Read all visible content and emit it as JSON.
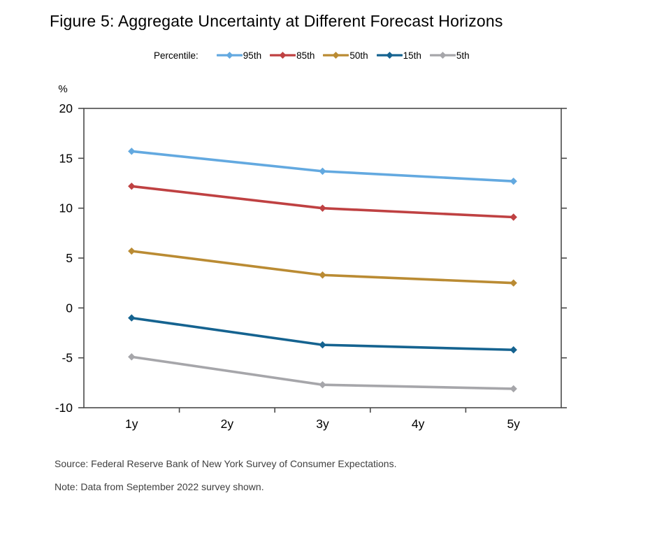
{
  "title": "Figure 5: Aggregate Uncertainty at Different Forecast Horizons",
  "legend": {
    "label": "Percentile:"
  },
  "chart_data": {
    "type": "line",
    "title": "Figure 5: Aggregate Uncertainty at Different Forecast Horizons",
    "unit_label": "%",
    "xlabel": "",
    "ylabel": "%",
    "x_tick_labels": [
      "1y",
      "2y",
      "3y",
      "4y",
      "5y"
    ],
    "x": [
      1,
      3,
      5
    ],
    "series": [
      {
        "name": "95th",
        "color": "#63A9E0",
        "values": [
          15.7,
          13.7,
          12.7
        ]
      },
      {
        "name": "85th",
        "color": "#BF4142",
        "values": [
          12.2,
          10.0,
          9.1
        ]
      },
      {
        "name": "50th",
        "color": "#BA8B33",
        "values": [
          5.7,
          3.3,
          2.5
        ]
      },
      {
        "name": "15th",
        "color": "#156390",
        "values": [
          -1.0,
          -3.7,
          -4.2
        ]
      },
      {
        "name": "5th",
        "color": "#A6A6AA",
        "values": [
          -4.9,
          -7.7,
          -8.1
        ]
      }
    ],
    "ylim": [
      -10,
      20
    ],
    "ytick_step": 5,
    "grid": false,
    "legend_position": "top",
    "axis_color": "#4a4a4a"
  },
  "source": "Source: Federal Reserve Bank of New York Survey of Consumer Expectations.",
  "note": "Note: Data from September 2022 survey shown."
}
